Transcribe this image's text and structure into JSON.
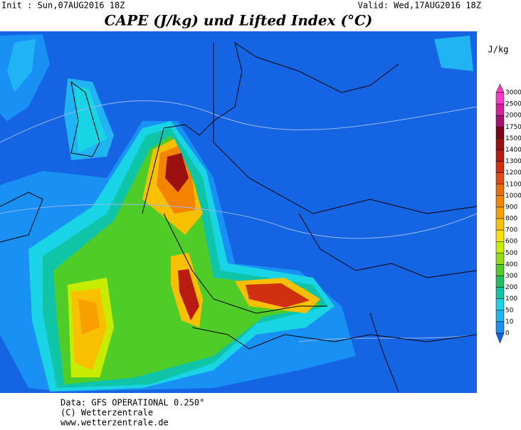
{
  "header": {
    "init": "Init : Sun,07AUG2016 18Z",
    "valid": "Valid: Wed,17AUG2016 18Z",
    "title": "CAPE (J/kg) und Lifted Index (°C)"
  },
  "legend": {
    "unit": "J/kg",
    "items": [
      {
        "value": 3000,
        "color": "#ff3cc8"
      },
      {
        "value": 2500,
        "color": "#d8209c"
      },
      {
        "value": 2000,
        "color": "#a8106c"
      },
      {
        "value": 1750,
        "color": "#800018"
      },
      {
        "value": 1500,
        "color": "#9c1010"
      },
      {
        "value": 1400,
        "color": "#b81c10"
      },
      {
        "value": 1300,
        "color": "#d03010"
      },
      {
        "value": 1200,
        "color": "#e04c10"
      },
      {
        "value": 1100,
        "color": "#ec6c08"
      },
      {
        "value": 1000,
        "color": "#f48400"
      },
      {
        "value": 900,
        "color": "#f8a000"
      },
      {
        "value": 800,
        "color": "#f8c000"
      },
      {
        "value": 700,
        "color": "#f8e000"
      },
      {
        "value": 600,
        "color": "#c8ec00"
      },
      {
        "value": 500,
        "color": "#90dc10"
      },
      {
        "value": 400,
        "color": "#50cc28"
      },
      {
        "value": 300,
        "color": "#20c060"
      },
      {
        "value": 200,
        "color": "#10c4a8"
      },
      {
        "value": 100,
        "color": "#18d4e4"
      },
      {
        "value": 50,
        "color": "#20b4f4"
      },
      {
        "value": 10,
        "color": "#1890f4"
      },
      {
        "value": 0,
        "color": "#1064e4"
      }
    ]
  },
  "footer": {
    "source": "Data: GFS OPERATIONAL 0.250°",
    "copyright": "(C) Wetterzentrale",
    "url": "www.wetterzentrale.de"
  }
}
